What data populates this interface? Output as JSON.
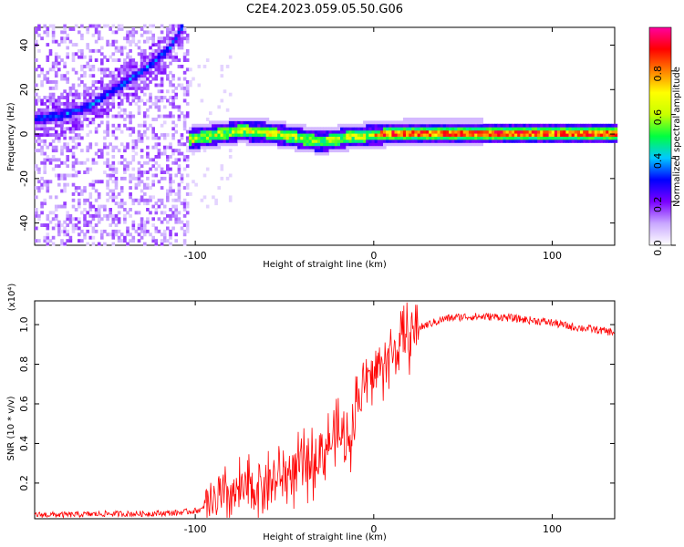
{
  "title": "C2E4.2023.059.05.50.G06",
  "chart_data": [
    {
      "type": "heatmap",
      "xlabel": "Height of straight line (km)",
      "ylabel": "Frequency (Hz)",
      "xlim": [
        -190,
        135
      ],
      "ylim": [
        -50,
        48
      ],
      "xticks": [
        -100,
        0,
        100
      ],
      "yticks": [
        -40,
        -20,
        0,
        20,
        40
      ],
      "colorbar": {
        "label": "Normalized spectral amplitude",
        "range": [
          0.0,
          1.0
        ],
        "ticks": [
          0.0,
          0.2,
          0.4,
          0.6,
          0.8
        ],
        "colors": [
          "#ffffff",
          "#c9a8ff",
          "#7a00ff",
          "#0000ff",
          "#00c8ff",
          "#00ff40",
          "#c8ff00",
          "#ffff00",
          "#ff8000",
          "#ff0000",
          "#ff00a0"
        ]
      },
      "features": [
        {
          "name": "rising trace",
          "x": [
            -190,
            -175,
            -160,
            -145,
            -130,
            -115,
            -108
          ],
          "y": [
            6,
            8,
            12,
            20,
            28,
            38,
            48
          ],
          "amplitude": 0.3
        },
        {
          "name": "near-zero trace",
          "x": [
            -105,
            -90,
            -75,
            -60,
            -45,
            -30,
            -15,
            0,
            15,
            40,
            80,
            135
          ],
          "y": [
            -3,
            -1,
            1,
            0,
            -2,
            -4,
            -2,
            -1,
            0,
            0,
            0,
            0
          ],
          "amplitude": 0.85
        }
      ]
    },
    {
      "type": "line",
      "xlabel": "Height of straight line (km)",
      "ylabel": "SNR (10 * v/v)",
      "y_multiplier": "(x10⁴)",
      "xlim": [
        -190,
        135
      ],
      "ylim": [
        0.02,
        1.12
      ],
      "xticks": [
        -100,
        0,
        100
      ],
      "yticks": [
        0.2,
        0.4,
        0.6,
        0.8,
        1.0
      ],
      "color": "#ff0000",
      "series": [
        {
          "x": [
            -190,
            -170,
            -150,
            -130,
            -110,
            -100,
            -95,
            -90,
            -85,
            -80,
            -75,
            -70,
            -65,
            -60,
            -55,
            -50,
            -45,
            -40,
            -35,
            -30,
            -25,
            -20,
            -15,
            -12,
            -10,
            -5,
            0,
            5,
            10,
            15,
            20,
            25,
            30,
            40,
            50,
            60,
            70,
            80,
            90,
            100,
            110,
            120,
            135
          ],
          "y": [
            0.04,
            0.04,
            0.045,
            0.045,
            0.05,
            0.06,
            0.07,
            0.1,
            0.12,
            0.14,
            0.15,
            0.17,
            0.18,
            0.2,
            0.22,
            0.24,
            0.26,
            0.28,
            0.3,
            0.35,
            0.4,
            0.45,
            0.4,
            0.5,
            0.6,
            0.7,
            0.75,
            0.8,
            0.85,
            0.9,
            0.95,
            0.98,
            1.0,
            1.03,
            1.04,
            1.04,
            1.04,
            1.03,
            1.02,
            1.01,
            0.99,
            0.98,
            0.96
          ]
        }
      ]
    }
  ]
}
